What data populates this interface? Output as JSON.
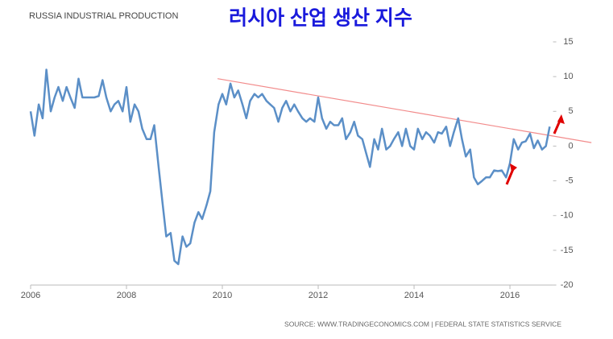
{
  "chart_data": {
    "type": "line",
    "title": "러시아 산업 생산 지수",
    "subtitle": "RUSSIA INDUSTRIAL PRODUCTION",
    "source": "SOURCE: WWW.TRADINGECONOMICS.COM | FEDERAL STATE STATISTICS SERVICE",
    "x": [
      2006.0,
      2006.08,
      2006.17,
      2006.25,
      2006.33,
      2006.42,
      2006.5,
      2006.58,
      2006.67,
      2006.75,
      2006.83,
      2006.92,
      2007.0,
      2007.08,
      2007.17,
      2007.25,
      2007.33,
      2007.42,
      2007.5,
      2007.58,
      2007.67,
      2007.75,
      2007.83,
      2007.92,
      2008.0,
      2008.08,
      2008.17,
      2008.25,
      2008.33,
      2008.42,
      2008.5,
      2008.58,
      2008.67,
      2008.75,
      2008.83,
      2008.92,
      2009.0,
      2009.08,
      2009.17,
      2009.25,
      2009.33,
      2009.42,
      2009.5,
      2009.58,
      2009.67,
      2009.75,
      2009.83,
      2009.92,
      2010.0,
      2010.08,
      2010.17,
      2010.25,
      2010.33,
      2010.42,
      2010.5,
      2010.58,
      2010.67,
      2010.75,
      2010.83,
      2010.92,
      2011.0,
      2011.08,
      2011.17,
      2011.25,
      2011.33,
      2011.42,
      2011.5,
      2011.58,
      2011.67,
      2011.75,
      2011.83,
      2011.92,
      2012.0,
      2012.08,
      2012.17,
      2012.25,
      2012.33,
      2012.42,
      2012.5,
      2012.58,
      2012.67,
      2012.75,
      2012.83,
      2012.92,
      2013.0,
      2013.08,
      2013.17,
      2013.25,
      2013.33,
      2013.42,
      2013.5,
      2013.58,
      2013.67,
      2013.75,
      2013.83,
      2013.92,
      2014.0,
      2014.08,
      2014.17,
      2014.25,
      2014.33,
      2014.42,
      2014.5,
      2014.58,
      2014.67,
      2014.75,
      2014.83,
      2014.92,
      2015.0,
      2015.08,
      2015.17,
      2015.25,
      2015.33,
      2015.42,
      2015.5,
      2015.58,
      2015.67,
      2015.75,
      2015.83,
      2015.92,
      2016.0,
      2016.08,
      2016.17,
      2016.25,
      2016.33,
      2016.42,
      2016.5,
      2016.58,
      2016.67,
      2016.75,
      2016.83
    ],
    "series": [
      {
        "color": "#5b8fc7",
        "values": [
          5,
          1.5,
          6,
          4,
          11,
          5,
          7,
          8.5,
          6.5,
          8.5,
          7,
          5.5,
          9.7,
          7,
          7,
          7,
          7,
          7.2,
          9.5,
          7,
          5,
          6,
          6.5,
          5,
          8.5,
          3.5,
          6,
          5,
          2.5,
          1,
          1,
          3,
          -3,
          -8,
          -13,
          -12.5,
          -16.5,
          -17,
          -13,
          -14.5,
          -14,
          -11,
          -9.5,
          -10.5,
          -8.5,
          -6.5,
          2,
          6,
          7.5,
          6,
          9,
          7,
          8,
          6,
          4,
          6.5,
          7.5,
          7,
          7.5,
          6.5,
          6,
          5.5,
          3.5,
          5.5,
          6.5,
          5,
          6,
          5,
          4,
          3.5,
          4,
          3.5,
          7,
          4,
          2.5,
          3.5,
          3,
          3,
          4,
          1,
          2,
          3.5,
          1.5,
          1,
          -1,
          -3,
          1,
          -0.5,
          2.5,
          -0.5,
          0,
          1,
          2,
          0,
          2.5,
          0,
          -0.5,
          2.5,
          1,
          2,
          1.5,
          0.5,
          2,
          1.8,
          2.8,
          0,
          2,
          4,
          1,
          -1.5,
          -0.5,
          -4.5,
          -5.5,
          -5,
          -4.5,
          -4.5,
          -3.5,
          -3.6,
          -3.5,
          -4.5,
          -2.5,
          1,
          -0.5,
          0.5,
          0.7,
          1.8,
          -0.3,
          0.8,
          -0.5,
          0,
          2.8
        ]
      }
    ],
    "trend_line": {
      "color": "#f28b8b",
      "x": [
        2009.9,
        2017.7
      ],
      "values": [
        9.7,
        0.5
      ]
    },
    "xlim": [
      2006,
      2016.9
    ],
    "xticks": [
      2006,
      2008,
      2010,
      2012,
      2014,
      2016
    ],
    "ylim": [
      -20,
      15
    ],
    "yticks": [
      -20,
      -15,
      -10,
      -5,
      0,
      5,
      10,
      15
    ]
  }
}
